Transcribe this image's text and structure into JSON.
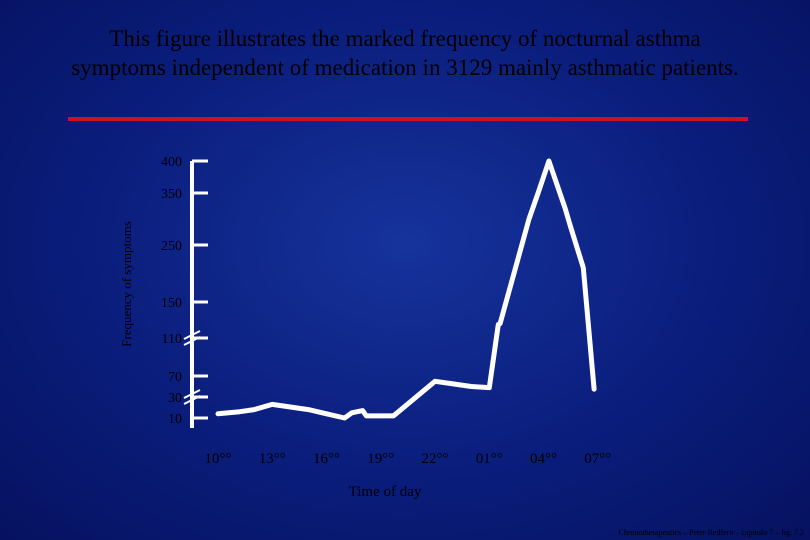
{
  "slide": {
    "title": "This figure illustrates the marked frequency of nocturnal asthma symptoms independent of medication in 3129 mainly asthmatic patients.",
    "footer": "Chronotherapeutics – Peter Redfern – capitulo 7 – fig. 7.2",
    "accent_color": "#cc1122",
    "line_color": "#ffffff"
  },
  "chart_data": {
    "type": "line",
    "title": "",
    "xlabel": "Time of day",
    "ylabel": "Frequency of symptoms",
    "x_ticks": [
      "10°°",
      "13°°",
      "16°°",
      "19°°",
      "22°°",
      "01°°",
      "04°°",
      "07°°"
    ],
    "y_ticks": [
      "400",
      "350",
      "250",
      "150",
      "110",
      "70",
      "30",
      "10"
    ],
    "axis_breaks": [
      "110",
      "30"
    ],
    "ylim": [
      10,
      400
    ],
    "series": [
      {
        "x_hours": [
          10,
          11.2,
          12,
          13,
          15,
          16,
          17,
          17.4,
          18,
          18.2,
          19.7,
          22,
          23,
          24,
          25,
          25.5,
          25.6,
          27.2,
          27.7,
          28.3,
          29.2,
          29.5,
          30.2,
          30.8
        ],
        "values": [
          14,
          16,
          18,
          23,
          18,
          14,
          10,
          15,
          17,
          12,
          12,
          60,
          55,
          50,
          48,
          125,
          126,
          300,
          350,
          400,
          320,
          285,
          210,
          45
        ]
      }
    ]
  }
}
